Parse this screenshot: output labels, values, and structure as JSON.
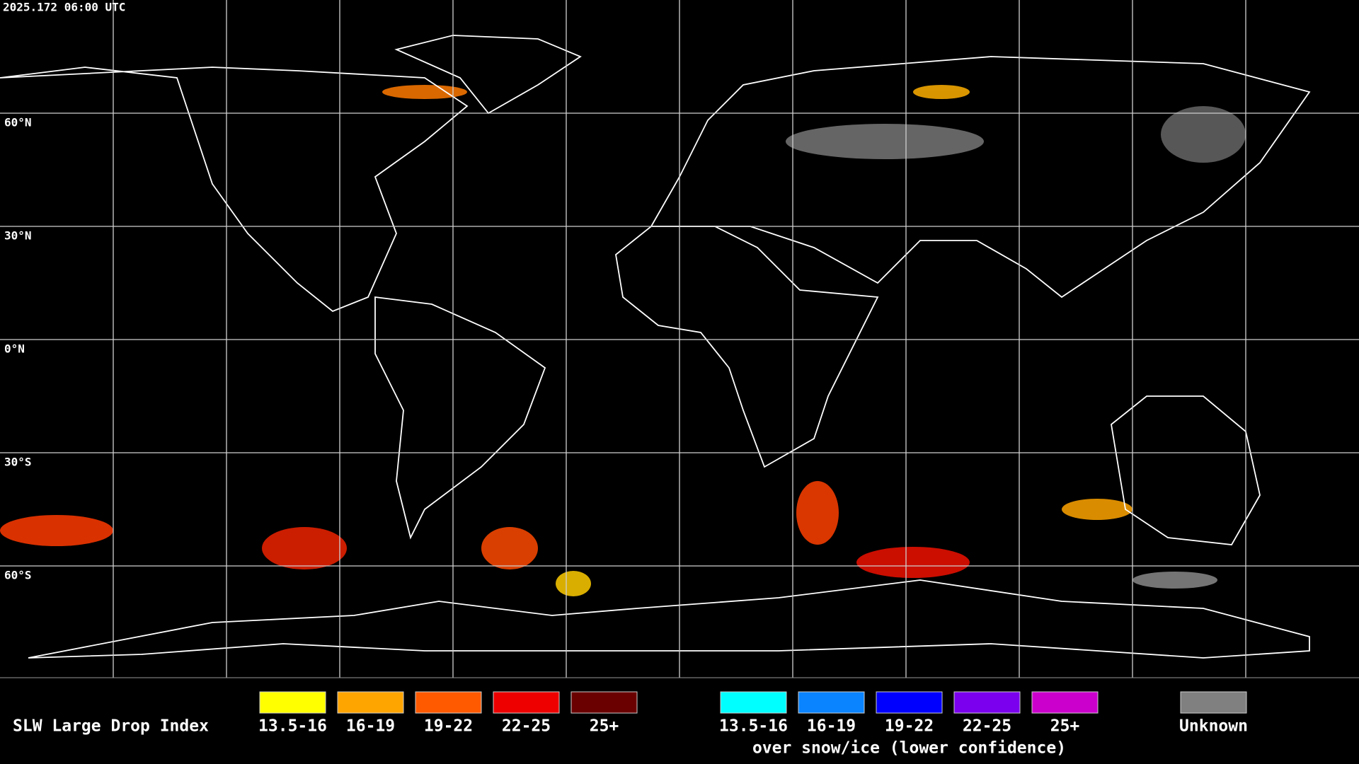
{
  "header": {
    "timestamp": "2025.172 06:00 UTC"
  },
  "map": {
    "latitude_labels": [
      "60°N",
      "30°N",
      "0°N",
      "30°S",
      "60°S"
    ]
  },
  "legend": {
    "title": "SLW Large Drop Index",
    "groups": [
      {
        "items": [
          {
            "label": "13.5-16",
            "color": "#ffff00"
          },
          {
            "label": "16-19",
            "color": "#ffa500"
          },
          {
            "label": "19-22",
            "color": "#ff5a00"
          },
          {
            "label": "22-25",
            "color": "#ee0000"
          },
          {
            "label": "25+",
            "color": "#6b0000"
          }
        ]
      },
      {
        "items": [
          {
            "label": "13.5-16",
            "color": "#00ffff"
          },
          {
            "label": "16-19",
            "color": "#0a84ff"
          },
          {
            "label": "19-22",
            "color": "#0000ff"
          },
          {
            "label": "22-25",
            "color": "#7a00ee"
          },
          {
            "label": "25+",
            "color": "#cc00cc"
          }
        ],
        "caption": "over snow/ice (lower confidence)"
      }
    ],
    "unknown": {
      "label": "Unknown",
      "color": "#808080"
    }
  }
}
